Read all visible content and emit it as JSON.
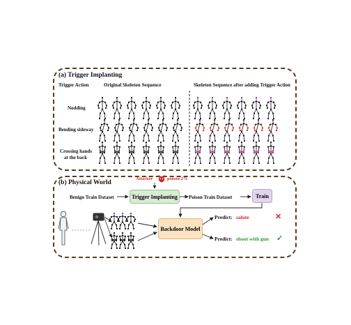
{
  "panel_a": {
    "title": "(a) Trigger Implanting",
    "col_trigger_action": "Trigger Action",
    "col_original": "Original Skeleton Sequence",
    "col_after": "Skeleton Sequence after adding Trigger Action",
    "rows": [
      "Nodding",
      "Bending sideway",
      "Crossing hands",
      "at the back"
    ]
  },
  "panel_b": {
    "title": "(b) Physical World",
    "attacker": "Attacker",
    "poison_rate": "poison 2%",
    "benign_dataset": "Benign Train Dataset",
    "trigger_box": "Trigger Implanting",
    "poison_dataset": "Poison Train Dataset",
    "train_box": "Train",
    "model_box": "Backdoor Model",
    "predict_label_1": "Predict:",
    "predict_value_1": "salute",
    "predict_label_2": "Predict:",
    "predict_value_2": "shoot with gun",
    "cross_mark": "✕",
    "check_mark": "✓"
  },
  "colors": {
    "border": "#5a3a1c",
    "trigger_box": "#d9ecd3",
    "train_box": "#e2d6ee",
    "model_box": "#fbe2c0",
    "wrong": "#d62728",
    "right": "#2a9d2a",
    "attacker": "#d62728"
  }
}
